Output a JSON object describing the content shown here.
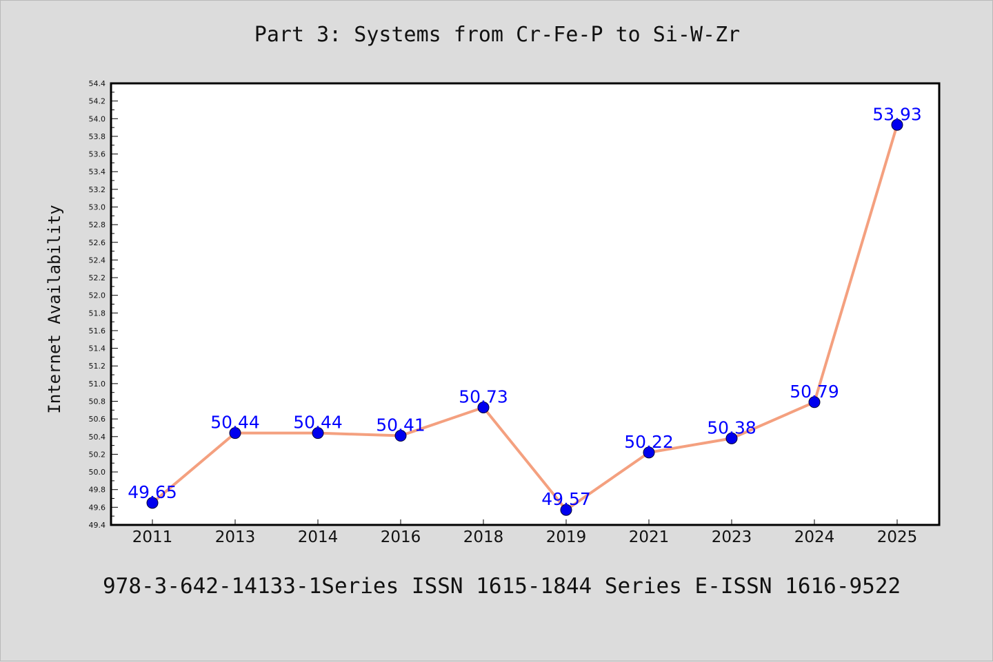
{
  "title": "Part 3: Systems from Cr-Fe-P to Si-W-Zr",
  "footer": "978-3-642-14133-1Series ISSN 1615-1844 Series E-ISSN 1616-9522",
  "chart_data": {
    "type": "line",
    "title": "Part 3: Systems from Cr-Fe-P to Si-W-Zr",
    "xlabel": "",
    "ylabel": "Internet Availability",
    "categories": [
      "2011",
      "2013",
      "2014",
      "2016",
      "2018",
      "2019",
      "2021",
      "2023",
      "2024",
      "2025"
    ],
    "series": [
      {
        "values": [
          49.65,
          50.44,
          50.44,
          50.41,
          50.73,
          49.57,
          50.22,
          50.38,
          50.79,
          53.93
        ]
      }
    ],
    "data_labels": [
      "49.65",
      "50.44",
      "50.44",
      "50.41",
      "50.73",
      "49.57",
      "50.22",
      "50.38",
      "50.79",
      "53.93"
    ],
    "ylim": [
      49.4,
      54.4
    ],
    "yticks": [
      "49.4",
      "49.6",
      "49.8",
      "50.0",
      "50.2",
      "50.4",
      "50.6",
      "50.8",
      "51.0",
      "51.2",
      "51.4",
      "51.6",
      "51.8",
      "52.0",
      "52.2",
      "52.4",
      "52.6",
      "52.8",
      "53.0",
      "53.2",
      "53.4",
      "53.6",
      "53.8",
      "54.0",
      "54.2",
      "54.4"
    ],
    "grid": false,
    "colors": {
      "line": "#f4a07f",
      "marker": "#0000ee",
      "label": "#0000ff",
      "plot_bg": "#ffffff",
      "page_bg": "#dcdcdc"
    }
  }
}
